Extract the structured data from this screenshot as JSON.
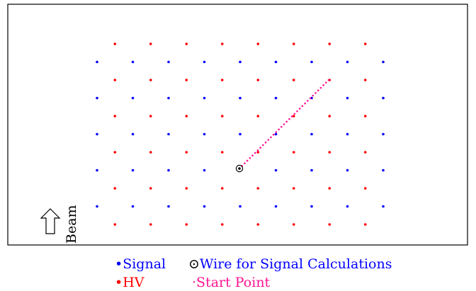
{
  "colors": {
    "signal": "#0000ff",
    "hv": "#ff0000",
    "start_point": "#ff1493",
    "frame": "#000000",
    "wire": "#000000"
  },
  "grid": {
    "signal_rows": 5,
    "signal_cols": 9,
    "hv_rows": 6,
    "hv_cols": 8
  },
  "beam": {
    "label": "Beam",
    "icon": "up-arrow-icon"
  },
  "legend": {
    "signal": {
      "symbol": "•",
      "label": "Signal"
    },
    "wire": {
      "symbol": "⊙",
      "label": "Wire for Signal Calculations"
    },
    "hv": {
      "symbol": "•",
      "label": "HV"
    },
    "start": {
      "symbol": "·",
      "label": "Start Point"
    }
  }
}
